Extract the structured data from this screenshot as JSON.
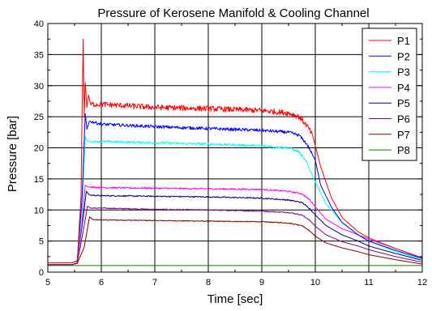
{
  "chart_data": {
    "type": "line",
    "title": "Pressure of Kerosene Manifold & Cooling Channel",
    "xlabel": "Time [sec]",
    "ylabel": "Pressure [bar]",
    "xlim": [
      5,
      12
    ],
    "ylim": [
      0,
      40
    ],
    "x_ticks": [
      "5",
      "6",
      "7",
      "8",
      "9",
      "10",
      "11",
      "12"
    ],
    "y_ticks": [
      "0",
      "5",
      "10",
      "15",
      "20",
      "25",
      "30",
      "35",
      "40"
    ],
    "grid": true,
    "legend_position": "top-right",
    "series": [
      {
        "name": "P1",
        "color": "#ff0000",
        "noise": 0.45,
        "points": [
          [
            5.0,
            1.5
          ],
          [
            5.45,
            1.5
          ],
          [
            5.55,
            1.8
          ],
          [
            5.62,
            12
          ],
          [
            5.66,
            37.5
          ],
          [
            5.68,
            25
          ],
          [
            5.7,
            30.5
          ],
          [
            5.73,
            26.5
          ],
          [
            5.76,
            28.5
          ],
          [
            5.8,
            27
          ],
          [
            6.0,
            27
          ],
          [
            7.0,
            26.5
          ],
          [
            8.0,
            26.3
          ],
          [
            9.0,
            26.0
          ],
          [
            9.5,
            25.6
          ],
          [
            9.7,
            25.0
          ],
          [
            9.85,
            23.5
          ],
          [
            9.95,
            22
          ],
          [
            10.1,
            17
          ],
          [
            10.3,
            12
          ],
          [
            10.5,
            8.8
          ],
          [
            10.8,
            6.5
          ],
          [
            11.0,
            5.5
          ],
          [
            11.5,
            3.8
          ],
          [
            12.0,
            2.3
          ]
        ]
      },
      {
        "name": "P2",
        "color": "#0000ff",
        "noise": 0.25,
        "points": [
          [
            5.0,
            1.5
          ],
          [
            5.45,
            1.5
          ],
          [
            5.55,
            1.8
          ],
          [
            5.64,
            12
          ],
          [
            5.7,
            25.5
          ],
          [
            5.73,
            23
          ],
          [
            5.78,
            24.3
          ],
          [
            6.0,
            23.8
          ],
          [
            7.0,
            23.4
          ],
          [
            8.0,
            23.1
          ],
          [
            9.0,
            22.8
          ],
          [
            9.5,
            22.5
          ],
          [
            9.7,
            22.0
          ],
          [
            9.85,
            20.5
          ],
          [
            10.0,
            18
          ],
          [
            10.1,
            14
          ],
          [
            10.3,
            10.5
          ],
          [
            10.5,
            8
          ],
          [
            10.8,
            6
          ],
          [
            11.0,
            5
          ],
          [
            11.5,
            3.5
          ],
          [
            12.0,
            2.2
          ]
        ]
      },
      {
        "name": "P3",
        "color": "#00ffff",
        "noise": 0.2,
        "points": [
          [
            5.0,
            1.5
          ],
          [
            5.45,
            1.5
          ],
          [
            5.55,
            1.8
          ],
          [
            5.64,
            10
          ],
          [
            5.7,
            21.8
          ],
          [
            5.75,
            21
          ],
          [
            6.0,
            21
          ],
          [
            7.0,
            20.8
          ],
          [
            8.0,
            20.6
          ],
          [
            9.0,
            20.3
          ],
          [
            9.5,
            20.0
          ],
          [
            9.7,
            19.3
          ],
          [
            9.85,
            17.5
          ],
          [
            10.0,
            14.5
          ],
          [
            10.2,
            11
          ],
          [
            10.5,
            8
          ],
          [
            10.8,
            6
          ],
          [
            11.0,
            5
          ],
          [
            11.5,
            3.3
          ],
          [
            12.0,
            2.0
          ]
        ]
      },
      {
        "name": "P4",
        "color": "#ff00ff",
        "noise": 0.12,
        "points": [
          [
            5.0,
            1.5
          ],
          [
            5.45,
            1.5
          ],
          [
            5.55,
            1.8
          ],
          [
            5.64,
            8
          ],
          [
            5.7,
            14
          ],
          [
            5.75,
            13.7
          ],
          [
            6.0,
            13.6
          ],
          [
            7.0,
            13.5
          ],
          [
            8.0,
            13.4
          ],
          [
            9.0,
            13.3
          ],
          [
            9.5,
            13.0
          ],
          [
            9.75,
            12.6
          ],
          [
            9.9,
            11.6
          ],
          [
            10.0,
            10.5
          ],
          [
            10.2,
            8.5
          ],
          [
            10.5,
            7
          ],
          [
            10.8,
            6
          ],
          [
            11.0,
            5.3
          ],
          [
            11.5,
            3.8
          ],
          [
            12.0,
            2.3
          ]
        ]
      },
      {
        "name": "P5",
        "color": "#000080",
        "noise": 0.1,
        "points": [
          [
            5.0,
            1.5
          ],
          [
            5.45,
            1.5
          ],
          [
            5.55,
            1.8
          ],
          [
            5.65,
            8
          ],
          [
            5.72,
            13
          ],
          [
            5.78,
            12.4
          ],
          [
            6.0,
            12.3
          ],
          [
            7.0,
            12.2
          ],
          [
            8.0,
            12.1
          ],
          [
            9.0,
            11.9
          ],
          [
            9.5,
            11.6
          ],
          [
            9.75,
            11.2
          ],
          [
            9.9,
            10.2
          ],
          [
            10.0,
            9.2
          ],
          [
            10.2,
            7.5
          ],
          [
            10.5,
            6
          ],
          [
            10.8,
            5
          ],
          [
            11.0,
            4.2
          ],
          [
            11.5,
            3.0
          ],
          [
            12.0,
            1.9
          ]
        ]
      },
      {
        "name": "P6",
        "color": "#800080",
        "noise": 0.08,
        "points": [
          [
            5.0,
            1.2
          ],
          [
            5.45,
            1.2
          ],
          [
            5.55,
            1.5
          ],
          [
            5.67,
            7
          ],
          [
            5.74,
            10.6
          ],
          [
            5.8,
            10.3
          ],
          [
            6.0,
            10.3
          ],
          [
            7.0,
            10.1
          ],
          [
            8.0,
            10.0
          ],
          [
            9.0,
            9.8
          ],
          [
            9.5,
            9.6
          ],
          [
            9.75,
            9.2
          ],
          [
            9.9,
            8.3
          ],
          [
            10.0,
            7.4
          ],
          [
            10.2,
            6
          ],
          [
            10.5,
            4.9
          ],
          [
            10.8,
            4.2
          ],
          [
            11.0,
            3.6
          ],
          [
            11.5,
            2.5
          ],
          [
            12.0,
            1.6
          ]
        ]
      },
      {
        "name": "P7",
        "color": "#800000",
        "noise": 0.07,
        "points": [
          [
            5.0,
            1.2
          ],
          [
            5.45,
            1.2
          ],
          [
            5.55,
            1.4
          ],
          [
            5.68,
            4
          ],
          [
            5.78,
            8.9
          ],
          [
            5.85,
            8.4
          ],
          [
            6.0,
            8.4
          ],
          [
            7.0,
            8.3
          ],
          [
            8.0,
            8.2
          ],
          [
            9.0,
            8.1
          ],
          [
            9.5,
            7.9
          ],
          [
            9.75,
            7.5
          ],
          [
            9.9,
            6.6
          ],
          [
            10.0,
            5.8
          ],
          [
            10.2,
            4.7
          ],
          [
            10.5,
            3.9
          ],
          [
            10.8,
            3.3
          ],
          [
            11.0,
            2.8
          ],
          [
            11.5,
            2.0
          ],
          [
            12.0,
            1.3
          ]
        ]
      },
      {
        "name": "P8",
        "color": "#008000",
        "noise": 0.0,
        "points": [
          [
            5.0,
            1.05
          ],
          [
            12.0,
            1.05
          ]
        ]
      }
    ]
  }
}
